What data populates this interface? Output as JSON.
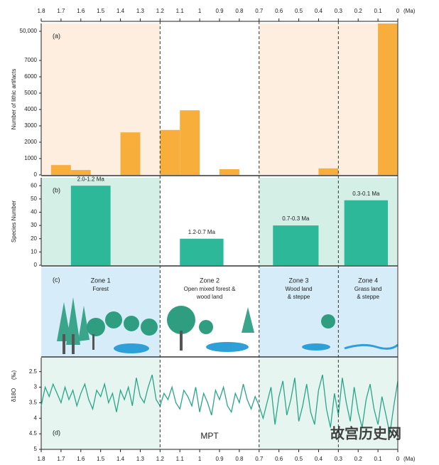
{
  "x_axis": {
    "xlim": [
      1.8,
      0
    ],
    "xticks": [
      1.8,
      1.7,
      1.6,
      1.5,
      1.4,
      1.3,
      1.2,
      1.1,
      1,
      0.9,
      0.8,
      0.7,
      0.6,
      0.5,
      0.4,
      0.3,
      0.2,
      0.1,
      0
    ],
    "unit": "(Ma)",
    "dividers": [
      1.2,
      0.7,
      0.3
    ]
  },
  "chart_data": [
    {
      "type": "bar",
      "panel_label": "(a)",
      "y_label": "Number of lithic artifacts",
      "color": "#f7ae3a",
      "background": "#fdeee0",
      "x_ranges": [
        [
          1.75,
          1.65
        ],
        [
          1.65,
          1.55
        ],
        [
          1.4,
          1.3
        ],
        [
          1.2,
          1.1
        ],
        [
          1.1,
          1.0
        ],
        [
          0.9,
          0.8
        ],
        [
          0.4,
          0.3
        ],
        [
          0.1,
          0
        ]
      ],
      "values": [
        600,
        300,
        2600,
        2750,
        3950,
        350,
        400,
        55000
      ],
      "ylim": [
        0,
        55000
      ],
      "yticks": [
        0,
        1000,
        2000,
        3000,
        4000,
        5000,
        6000,
        7000,
        {
          "value": 50000,
          "label": "50,000"
        }
      ]
    },
    {
      "type": "bar",
      "panel_label": "(b)",
      "y_label": "Species Number",
      "color": "#2db89a",
      "background": "#d3efe6",
      "x_ranges": [
        [
          1.65,
          1.45
        ],
        [
          1.1,
          0.88
        ],
        [
          0.63,
          0.4
        ],
        [
          0.27,
          0.05
        ]
      ],
      "values": [
        60,
        20,
        30,
        49
      ],
      "bar_labels": [
        "2.0-1.2 Ma",
        "1.2-0.7 Ma",
        "0.7-0.3 Ma",
        "0.3-0.1 Ma"
      ],
      "ylim": [
        0,
        66
      ],
      "yticks": [
        0,
        10,
        20,
        30,
        40,
        50,
        60
      ]
    },
    {
      "type": "line",
      "panel_label": "(d)",
      "y_label": "δ18O",
      "y_unit": "(‰)",
      "annotation": "MPT",
      "color": "#2aa58a",
      "background": "#e6f5f0",
      "x": [
        1.8,
        1.78,
        1.76,
        1.74,
        1.72,
        1.7,
        1.68,
        1.66,
        1.64,
        1.62,
        1.6,
        1.58,
        1.56,
        1.54,
        1.52,
        1.5,
        1.48,
        1.46,
        1.44,
        1.42,
        1.4,
        1.38,
        1.36,
        1.34,
        1.32,
        1.3,
        1.28,
        1.26,
        1.24,
        1.22,
        1.2,
        1.18,
        1.16,
        1.14,
        1.12,
        1.1,
        1.08,
        1.06,
        1.04,
        1.02,
        1,
        0.98,
        0.96,
        0.94,
        0.92,
        0.9,
        0.88,
        0.86,
        0.84,
        0.82,
        0.8,
        0.78,
        0.76,
        0.74,
        0.72,
        0.7,
        0.68,
        0.66,
        0.64,
        0.62,
        0.6,
        0.58,
        0.56,
        0.54,
        0.52,
        0.5,
        0.48,
        0.46,
        0.44,
        0.42,
        0.4,
        0.38,
        0.36,
        0.34,
        0.32,
        0.3,
        0.28,
        0.26,
        0.24,
        0.22,
        0.2,
        0.18,
        0.16,
        0.14,
        0.12,
        0.1,
        0.08,
        0.06,
        0.04,
        0.02,
        0
      ],
      "values": [
        3.6,
        3.0,
        3.3,
        2.9,
        3.2,
        3.5,
        3.0,
        3.4,
        3.1,
        3.6,
        3.2,
        2.9,
        3.4,
        3.7,
        3.1,
        3.3,
        2.9,
        3.5,
        3.2,
        3.8,
        3.1,
        3.4,
        3.0,
        3.6,
        2.7,
        3.3,
        3.5,
        3.0,
        2.6,
        3.4,
        3.6,
        3.2,
        3.4,
        3.0,
        3.5,
        3.7,
        3.1,
        3.3,
        3.6,
        3.0,
        3.8,
        3.2,
        3.5,
        3.9,
        3.1,
        3.4,
        3.0,
        3.6,
        3.8,
        3.2,
        3.5,
        2.9,
        3.4,
        3.7,
        3.3,
        3.6,
        4.0,
        3.5,
        3.0,
        4.2,
        3.3,
        2.8,
        3.9,
        3.4,
        2.7,
        4.1,
        3.6,
        2.9,
        3.8,
        4.2,
        3.1,
        2.6,
        3.7,
        4.3,
        3.2,
        3.9,
        2.7,
        3.5,
        4.1,
        3.0,
        3.8,
        4.3,
        3.4,
        2.9,
        3.7,
        4.2,
        3.3,
        3.9,
        4.5,
        3.6,
        2.8
      ],
      "ylim": [
        2.05,
        5
      ],
      "yticks": [
        2.5,
        3,
        3.5,
        4,
        4.5,
        5
      ],
      "inverted": true
    }
  ],
  "zones_panel": {
    "panel_label": "(c)",
    "zones": [
      {
        "name": "Zone 1",
        "lines": [
          "Forest"
        ]
      },
      {
        "name": "Zone 2",
        "lines": [
          "Open mixed forest &",
          "wood land"
        ]
      },
      {
        "name": "Zone 3",
        "lines": [
          "Wood land",
          "& steppe"
        ]
      },
      {
        "name": "Zone 4",
        "lines": [
          "Grass land",
          "& steppe"
        ]
      }
    ]
  },
  "watermark": "故宫历史网"
}
